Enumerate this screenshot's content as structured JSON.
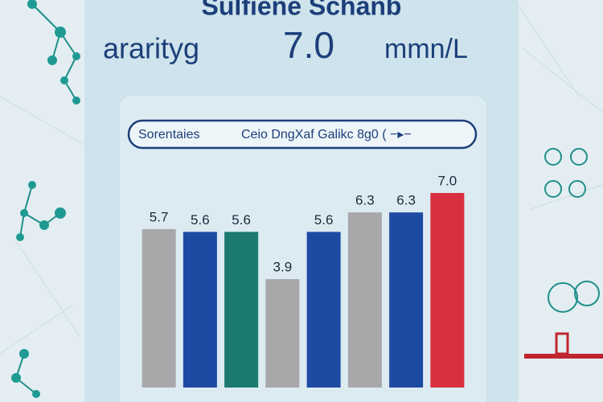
{
  "chart_data": {
    "type": "bar",
    "title": "Sulfiene Schanb",
    "subtitle": [
      "ararityg",
      "7.0",
      "mmn/L"
    ],
    "legend_text": [
      "Sorentaies",
      "Ceio DngXaf Galikc 8g0  ( −▸−"
    ],
    "values": [
      5.7,
      5.6,
      5.6,
      3.9,
      5.6,
      6.3,
      6.3,
      7.0
    ],
    "value_labels": [
      "5.7",
      "5.6",
      "5.6",
      "3.9",
      "5.6",
      "6.3",
      "6.3",
      "7.0"
    ],
    "colors": [
      "#a8a8aa",
      "#1d4aa3",
      "#1c7a6f",
      "#a8a8aa",
      "#1d4aa3",
      "#a8a8aa",
      "#1d4aa3",
      "#d9303f"
    ]
  }
}
